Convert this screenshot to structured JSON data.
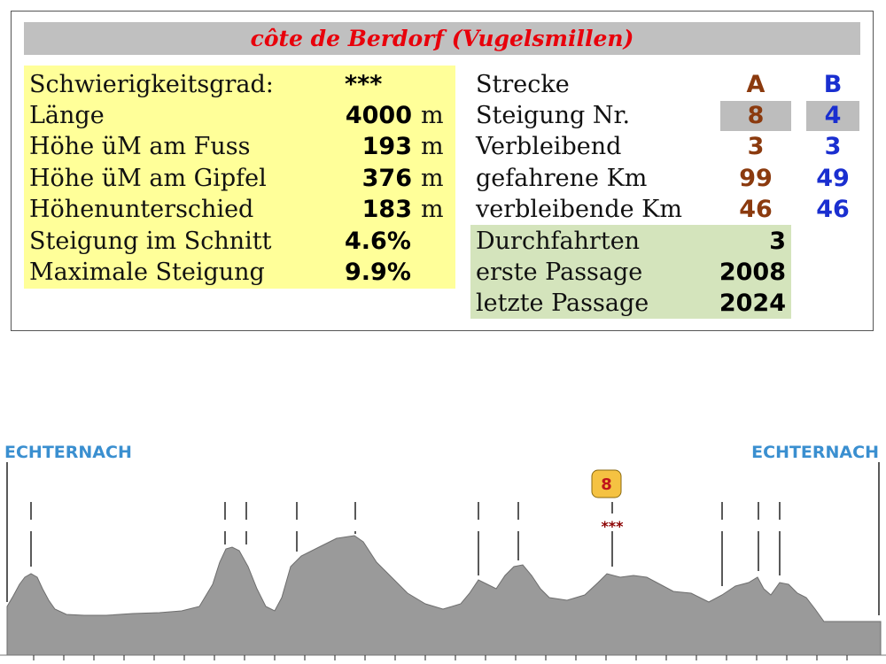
{
  "title": "côte de Berdorf (Vugelsmillen)",
  "stats": [
    {
      "label": "Schwierigkeitsgrad:",
      "value": "***",
      "unit": ""
    },
    {
      "label": "Länge",
      "value": "4000",
      "unit": "m"
    },
    {
      "label": "Höhe üM am Fuss",
      "value": "193",
      "unit": "m"
    },
    {
      "label": "Höhe üM am Gipfel",
      "value": "376",
      "unit": "m"
    },
    {
      "label": "Höhenunterschied",
      "value": "183",
      "unit": "m"
    },
    {
      "label": "Steigung im Schnitt",
      "value": "4.6%",
      "unit": ""
    },
    {
      "label": "Maximale Steigung",
      "value": "9.9%",
      "unit": ""
    }
  ],
  "route": {
    "header_label": "Strecke",
    "col_a": "A",
    "col_b": "B",
    "rows": [
      {
        "label": "Steigung Nr.",
        "a": "8",
        "b": "4"
      },
      {
        "label": "Verbleibend",
        "a": "3",
        "b": "3"
      },
      {
        "label": "gefahrene Km",
        "a": "99",
        "b": "49"
      },
      {
        "label": "verbleibende Km",
        "a": "46",
        "b": "46"
      }
    ]
  },
  "passages": [
    {
      "label": "Durchfahrten",
      "value": "3"
    },
    {
      "label": "erste Passage",
      "value": "2008"
    },
    {
      "label": "letzte Passage",
      "value": "2024"
    }
  ],
  "profile": {
    "start_label": "ECHTERNACH",
    "end_label": "ECHTERNACH",
    "climb_badge": "8",
    "climb_stars": "***",
    "colors": {
      "fill": "#9a9a9a",
      "label": "#3a8fd0",
      "badge_fill": "#f5c242",
      "badge_text": "#c0151b",
      "stars": "#8b0000"
    }
  }
}
